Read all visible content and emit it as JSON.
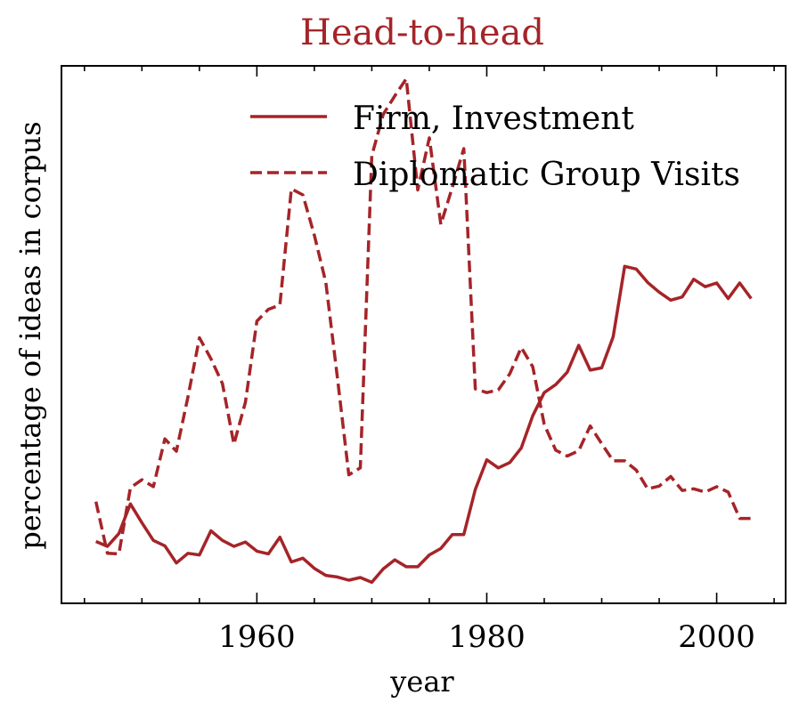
{
  "chart_data": {
    "type": "line",
    "title": "Head-to-head",
    "xlabel": "year",
    "ylabel": "percentage of ideas in corpus",
    "xlim": [
      1943,
      2006
    ],
    "ylim": [
      0,
      100
    ],
    "x_ticks": [
      1960,
      1980,
      2000
    ],
    "y_ticks_shown": false,
    "legend_position": "top-right",
    "grid": false,
    "colors": {
      "series": "#a52428",
      "title": "#a52428",
      "axis": "#000000"
    },
    "x": [
      1946,
      1947,
      1948,
      1949,
      1950,
      1951,
      1952,
      1953,
      1954,
      1955,
      1956,
      1957,
      1958,
      1959,
      1960,
      1961,
      1962,
      1963,
      1964,
      1965,
      1966,
      1967,
      1968,
      1969,
      1970,
      1971,
      1972,
      1973,
      1974,
      1975,
      1976,
      1977,
      1978,
      1979,
      1980,
      1981,
      1982,
      1983,
      1984,
      1985,
      1986,
      1987,
      1988,
      1989,
      1990,
      1991,
      1992,
      1993,
      1994,
      1995,
      1996,
      1997,
      1998,
      1999,
      2000,
      2001,
      2002,
      2003
    ],
    "series": [
      {
        "name": "Firm, Investment",
        "style": "solid",
        "values": [
          11.5,
          10.6,
          13.0,
          18.5,
          15.0,
          11.7,
          10.7,
          7.5,
          9.3,
          9.0,
          13.5,
          11.7,
          10.6,
          11.4,
          9.7,
          9.2,
          12.3,
          7.7,
          8.4,
          6.5,
          5.2,
          4.9,
          4.3,
          4.8,
          3.9,
          6.4,
          8.1,
          6.8,
          6.8,
          9.0,
          10.2,
          12.8,
          12.8,
          21.2,
          26.7,
          25.2,
          26.2,
          28.9,
          34.9,
          39.2,
          40.7,
          43.0,
          48.0,
          43.4,
          43.8,
          49.6,
          62.7,
          62.2,
          59.7,
          57.9,
          56.4,
          57.0,
          60.3,
          58.9,
          59.6,
          56.7,
          59.6,
          56.7
        ]
      },
      {
        "name": "Diplomatic Group Visits",
        "style": "dashed",
        "values": [
          18.9,
          9.3,
          9.2,
          21.5,
          23.0,
          21.7,
          30.6,
          28.3,
          38.4,
          49.4,
          45.5,
          40.9,
          29.6,
          37.4,
          52.5,
          54.7,
          55.5,
          77.1,
          76.0,
          68.5,
          59.7,
          42.1,
          23.9,
          25.2,
          83.3,
          91.0,
          94.4,
          97.6,
          76.9,
          86.6,
          70.5,
          77.4,
          84.6,
          39.9,
          39.2,
          39.7,
          42.7,
          47.6,
          44.0,
          33.3,
          28.5,
          27.4,
          28.4,
          33.0,
          29.7,
          26.5,
          26.5,
          24.8,
          21.3,
          21.8,
          23.6,
          21.0,
          21.3,
          20.7,
          21.7,
          20.7,
          15.8,
          15.8
        ]
      }
    ]
  }
}
